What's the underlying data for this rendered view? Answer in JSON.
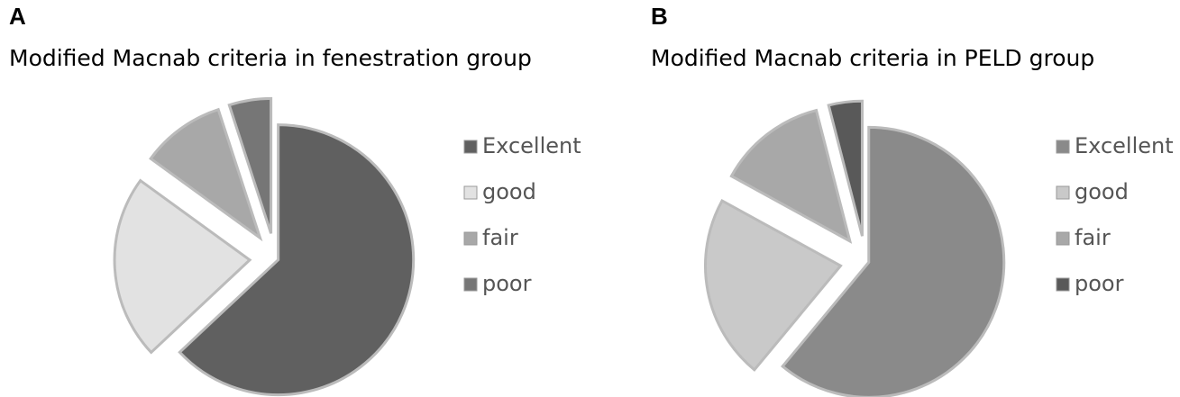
{
  "chart_data": [
    {
      "type": "pie",
      "panel_label": "A",
      "title": "Modified Macnab criteria in fenestration group",
      "categories": [
        "Excellent",
        "good",
        "fair",
        "poor"
      ],
      "values": [
        63,
        22,
        10,
        5
      ],
      "colors": [
        "#606060",
        "#e2e2e2",
        "#a8a8a8",
        "#767676"
      ],
      "legend": "right"
    },
    {
      "type": "pie",
      "panel_label": "B",
      "title": "Modified Macnab criteria in PELD group",
      "categories": [
        "Excellent",
        "good",
        "fair",
        "poor"
      ],
      "values": [
        61,
        22,
        13,
        4
      ],
      "colors": [
        "#8a8a8a",
        "#c9c9c9",
        "#a8a8a8",
        "#595959"
      ],
      "legend": "right"
    }
  ]
}
